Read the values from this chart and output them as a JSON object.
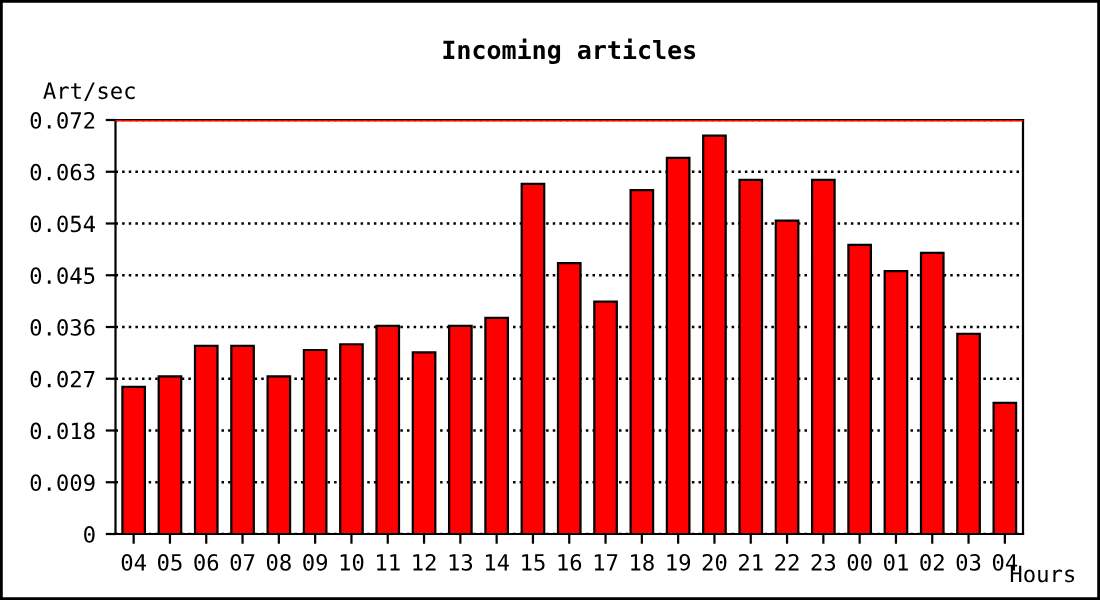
{
  "chart_data": {
    "type": "bar",
    "title": "Incoming articles",
    "ylabel": "Art/sec",
    "xlabel": "Hours",
    "categories": [
      "04",
      "05",
      "06",
      "07",
      "08",
      "09",
      "10",
      "11",
      "12",
      "13",
      "14",
      "15",
      "16",
      "17",
      "18",
      "19",
      "20",
      "21",
      "22",
      "23",
      "00",
      "01",
      "02",
      "03",
      "04"
    ],
    "values": [
      0.0256,
      0.0274,
      0.0327,
      0.0327,
      0.0274,
      0.032,
      0.033,
      0.0362,
      0.0316,
      0.0362,
      0.0376,
      0.0609,
      0.0471,
      0.0404,
      0.0598,
      0.0654,
      0.0693,
      0.0616,
      0.0545,
      0.0616,
      0.0503,
      0.0457,
      0.0489,
      0.0348,
      0.0228
    ],
    "color": "#ff0000",
    "ylim": [
      0,
      0.072
    ],
    "yticks": [
      0,
      0.009,
      0.018,
      0.027,
      0.036,
      0.045,
      0.054,
      0.063,
      0.072
    ],
    "grid": "y",
    "line_style": "dotted",
    "ref_lines": [
      {
        "axis": "y",
        "value": 0.072,
        "label": null,
        "color": "#ff0000",
        "line_style": "solid"
      }
    ]
  }
}
